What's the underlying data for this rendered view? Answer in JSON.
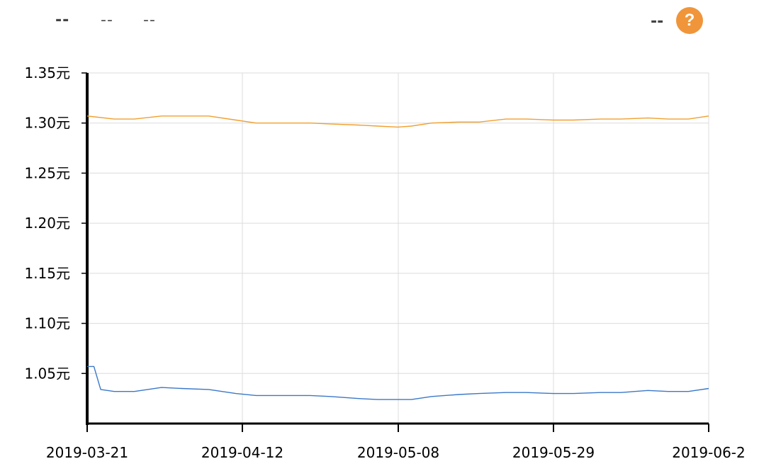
{
  "legend": [
    {
      "label": "--",
      "bold": true
    },
    {
      "label": "--",
      "bold": false
    },
    {
      "label": "--",
      "bold": false
    }
  ],
  "right_label": "--",
  "help_icon": {
    "glyph": "?",
    "color": "#f0953a"
  },
  "chart_data": {
    "type": "line",
    "title": "",
    "xlabel": "",
    "ylabel": "",
    "ylim": [
      1.0,
      1.35
    ],
    "yticks": [
      1.05,
      1.1,
      1.15,
      1.2,
      1.25,
      1.3,
      1.35
    ],
    "ytick_labels": [
      "1.05元",
      "1.10元",
      "1.15元",
      "1.20元",
      "1.25元",
      "1.30元",
      "1.35元"
    ],
    "xlim": [
      "2019-03-21",
      "2019-06-21"
    ],
    "xticks": [
      "2019-03-21",
      "2019-04-12",
      "2019-05-08",
      "2019-05-29",
      "2019-06-2"
    ],
    "grid": true,
    "series": [
      {
        "color": "#f0a030",
        "x": [
          "2019-03-21",
          "2019-03-25",
          "2019-03-28",
          "2019-04-01",
          "2019-04-04",
          "2019-04-08",
          "2019-04-12",
          "2019-04-15",
          "2019-04-19",
          "2019-04-23",
          "2019-04-26",
          "2019-04-30",
          "2019-05-03",
          "2019-05-06",
          "2019-05-08",
          "2019-05-11",
          "2019-05-15",
          "2019-05-18",
          "2019-05-22",
          "2019-05-25",
          "2019-05-29",
          "2019-06-01",
          "2019-06-05",
          "2019-06-08",
          "2019-06-12",
          "2019-06-15",
          "2019-06-18",
          "2019-06-21"
        ],
        "y": [
          1.307,
          1.304,
          1.304,
          1.307,
          1.307,
          1.307,
          1.303,
          1.3,
          1.3,
          1.3,
          1.299,
          1.298,
          1.297,
          1.296,
          1.297,
          1.3,
          1.301,
          1.301,
          1.304,
          1.304,
          1.303,
          1.303,
          1.304,
          1.304,
          1.305,
          1.304,
          1.304,
          1.307
        ]
      },
      {
        "color": "#3a78c8",
        "x": [
          "2019-03-21",
          "2019-03-22",
          "2019-03-23",
          "2019-03-25",
          "2019-03-28",
          "2019-04-01",
          "2019-04-04",
          "2019-04-08",
          "2019-04-12",
          "2019-04-15",
          "2019-04-19",
          "2019-04-23",
          "2019-04-26",
          "2019-04-30",
          "2019-05-03",
          "2019-05-06",
          "2019-05-08",
          "2019-05-11",
          "2019-05-15",
          "2019-05-18",
          "2019-05-22",
          "2019-05-25",
          "2019-05-29",
          "2019-06-01",
          "2019-06-05",
          "2019-06-08",
          "2019-06-12",
          "2019-06-15",
          "2019-06-18",
          "2019-06-21"
        ],
        "y": [
          1.057,
          1.057,
          1.034,
          1.032,
          1.032,
          1.036,
          1.035,
          1.034,
          1.03,
          1.028,
          1.028,
          1.028,
          1.027,
          1.025,
          1.024,
          1.024,
          1.024,
          1.027,
          1.029,
          1.03,
          1.031,
          1.031,
          1.03,
          1.03,
          1.031,
          1.031,
          1.033,
          1.032,
          1.032,
          1.035
        ]
      }
    ]
  }
}
